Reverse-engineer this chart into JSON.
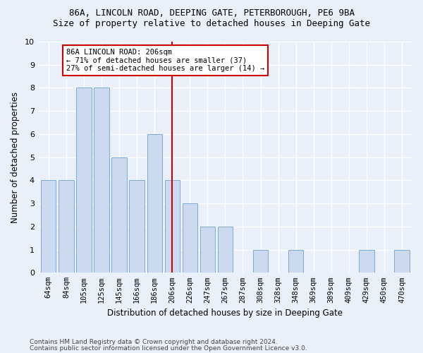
{
  "title1": "86A, LINCOLN ROAD, DEEPING GATE, PETERBOROUGH, PE6 9BA",
  "title2": "Size of property relative to detached houses in Deeping Gate",
  "xlabel": "Distribution of detached houses by size in Deeping Gate",
  "ylabel": "Number of detached properties",
  "categories": [
    "64sqm",
    "84sqm",
    "105sqm",
    "125sqm",
    "145sqm",
    "166sqm",
    "186sqm",
    "206sqm",
    "226sqm",
    "247sqm",
    "267sqm",
    "287sqm",
    "308sqm",
    "328sqm",
    "348sqm",
    "369sqm",
    "389sqm",
    "409sqm",
    "429sqm",
    "450sqm",
    "470sqm"
  ],
  "values": [
    4,
    4,
    8,
    8,
    5,
    4,
    6,
    4,
    3,
    2,
    2,
    0,
    1,
    0,
    1,
    0,
    0,
    0,
    1,
    0,
    1
  ],
  "bar_color": "#ccdaf0",
  "bar_edge_color": "#7baad4",
  "highlight_index": 7,
  "annotation_line1": "86A LINCOLN ROAD: 206sqm",
  "annotation_line2": "← 71% of detached houses are smaller (37)",
  "annotation_line3": "27% of semi-detached houses are larger (14) →",
  "annotation_box_color": "#ffffff",
  "annotation_box_edge": "#cc0000",
  "red_line_color": "#cc0000",
  "ylim": [
    0,
    10
  ],
  "yticks": [
    0,
    1,
    2,
    3,
    4,
    5,
    6,
    7,
    8,
    9,
    10
  ],
  "footer1": "Contains HM Land Registry data © Crown copyright and database right 2024.",
  "footer2": "Contains public sector information licensed under the Open Government Licence v3.0.",
  "bg_color": "#eaf0fa",
  "grid_color": "#ffffff",
  "title_fontsize": 9,
  "subtitle_fontsize": 9
}
